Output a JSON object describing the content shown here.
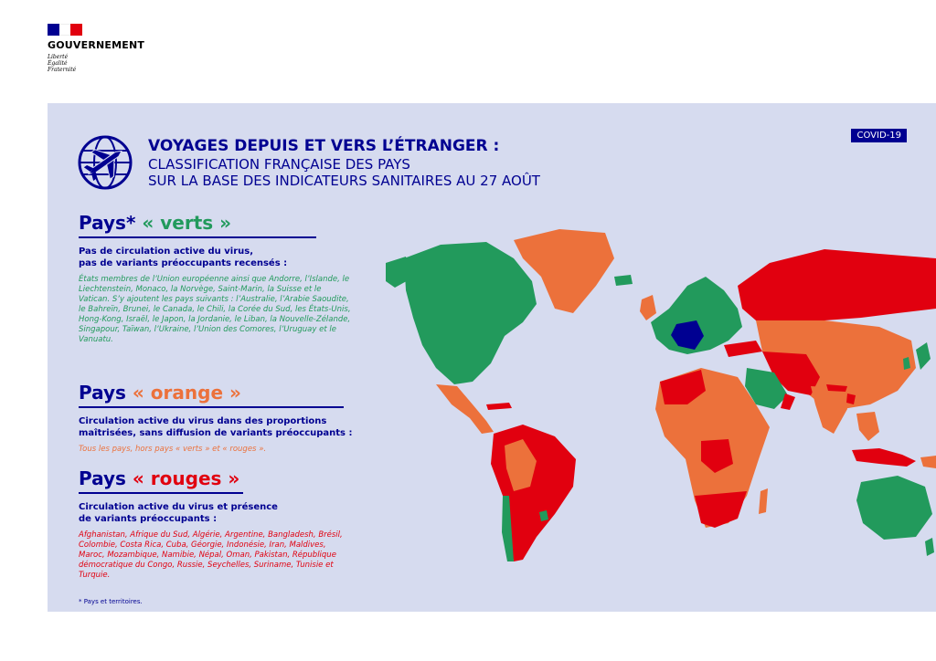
{
  "header": {
    "org": "GOUVERNEMENT",
    "motto": [
      "Liberté",
      "Égalité",
      "Fraternité"
    ],
    "flag_colors": [
      "#000091",
      "#ffffff",
      "#e1000f"
    ]
  },
  "badge": "COVID-19",
  "title": {
    "line1": "VOYAGES DEPUIS ET VERS L’ÉTRANGER :",
    "line2": "CLASSIFICATION FRANÇAISE DES PAYS",
    "line3": "SUR LA BASE DES INDICATEURS SANITAIRES AU 27 AOÛT"
  },
  "icon": "globe-plane-icon",
  "colors": {
    "green": "#229a5c",
    "orange": "#ec713b",
    "red": "#e1000f",
    "france": "#000091",
    "background": "#d6dbef"
  },
  "sections": {
    "green": {
      "prefix": "Pays*",
      "label": "« verts »",
      "desc1": "Pas de circulation active du virus,",
      "desc2": "pas de variants préoccupants recensés :",
      "list": "États membres de l’Union européenne ainsi que Andorre, l’Islande, le Liechtenstein, Monaco, la Norvège, Saint-Marin, la Suisse et le Vatican. S’y ajoutent les pays suivants : l’Australie, l’Arabie Saoudite, le Bahreïn, Brunei, le Canada, le Chili, la Corée du Sud, les États-Unis, Hong-Kong, Israël, le Japon, la Jordanie, le Liban, la Nouvelle-Zélande, Singapour, Taïwan, l’Ukraine, l’Union des Comores, l’Uruguay et le Vanuatu."
    },
    "orange": {
      "prefix": "Pays",
      "label": "« orange »",
      "desc1": "Circulation active du virus dans des proportions",
      "desc2": "maîtrisées, sans diffusion de variants préoccupants :",
      "list": "Tous les pays, hors pays « verts » et « rouges »."
    },
    "red": {
      "prefix": "Pays",
      "label": "« rouges »",
      "desc1": "Circulation active du virus et présence",
      "desc2": "de variants préoccupants :",
      "list": "Afghanistan, Afrique du Sud, Algérie, Argentine, Bangladesh, Brésil, Colombie, Costa Rica, Cuba, Géorgie, Indonésie, Iran, Maldives, Maroc, Mozambique, Namibie, Népal, Oman, Pakistan, République démocratique du Congo, Russie, Seychelles, Suriname, Tunisie et Turquie."
    }
  },
  "footnote": "* Pays et territoires."
}
